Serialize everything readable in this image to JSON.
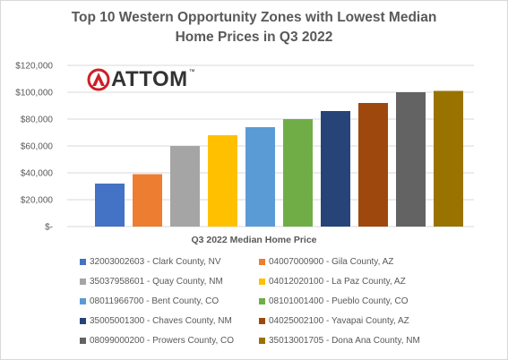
{
  "chart_data": {
    "type": "bar",
    "title": [
      "Top 10 Western Opportunity Zones with Lowest Median",
      "Home Prices in Q3 2022"
    ],
    "xlabel": "Q3 2022 Median Home Price",
    "ylabel": "",
    "ylim": [
      0,
      120000
    ],
    "yticks": [
      0,
      20000,
      40000,
      60000,
      80000,
      100000,
      120000
    ],
    "ytick_labels": [
      "$-",
      "$20,000",
      "$40,000",
      "$60,000",
      "$80,000",
      "$100,000",
      "$120,000"
    ],
    "grid": true,
    "legend_position": "bottom",
    "series": [
      {
        "name": "32003002603 - Clark County, NV",
        "value": 32000,
        "color": "#4472c4"
      },
      {
        "name": "04007000900 - Gila County, AZ",
        "value": 39000,
        "color": "#ed7d31"
      },
      {
        "name": "35037958601 - Quay County, NM",
        "value": 60000,
        "color": "#a5a5a5"
      },
      {
        "name": "04012020100 - La Paz County, AZ",
        "value": 68000,
        "color": "#ffc000"
      },
      {
        "name": "08011966700 - Bent County, CO",
        "value": 74000,
        "color": "#5b9bd5"
      },
      {
        "name": "08101001400 - Pueblo County, CO",
        "value": 80000,
        "color": "#70ad47"
      },
      {
        "name": "35005001300 - Chaves County, NM",
        "value": 86000,
        "color": "#264478"
      },
      {
        "name": "04025002100 - Yavapai County, AZ",
        "value": 92000,
        "color": "#9e480e"
      },
      {
        "name": "08099000200 - Prowers County, CO",
        "value": 100000,
        "color": "#636363"
      },
      {
        "name": "35013001705 - Dona Ana County, NM",
        "value": 101000,
        "color": "#997300"
      }
    ]
  },
  "logo": {
    "text": "ATTOM",
    "tm": "™",
    "color": "#cc2027"
  }
}
